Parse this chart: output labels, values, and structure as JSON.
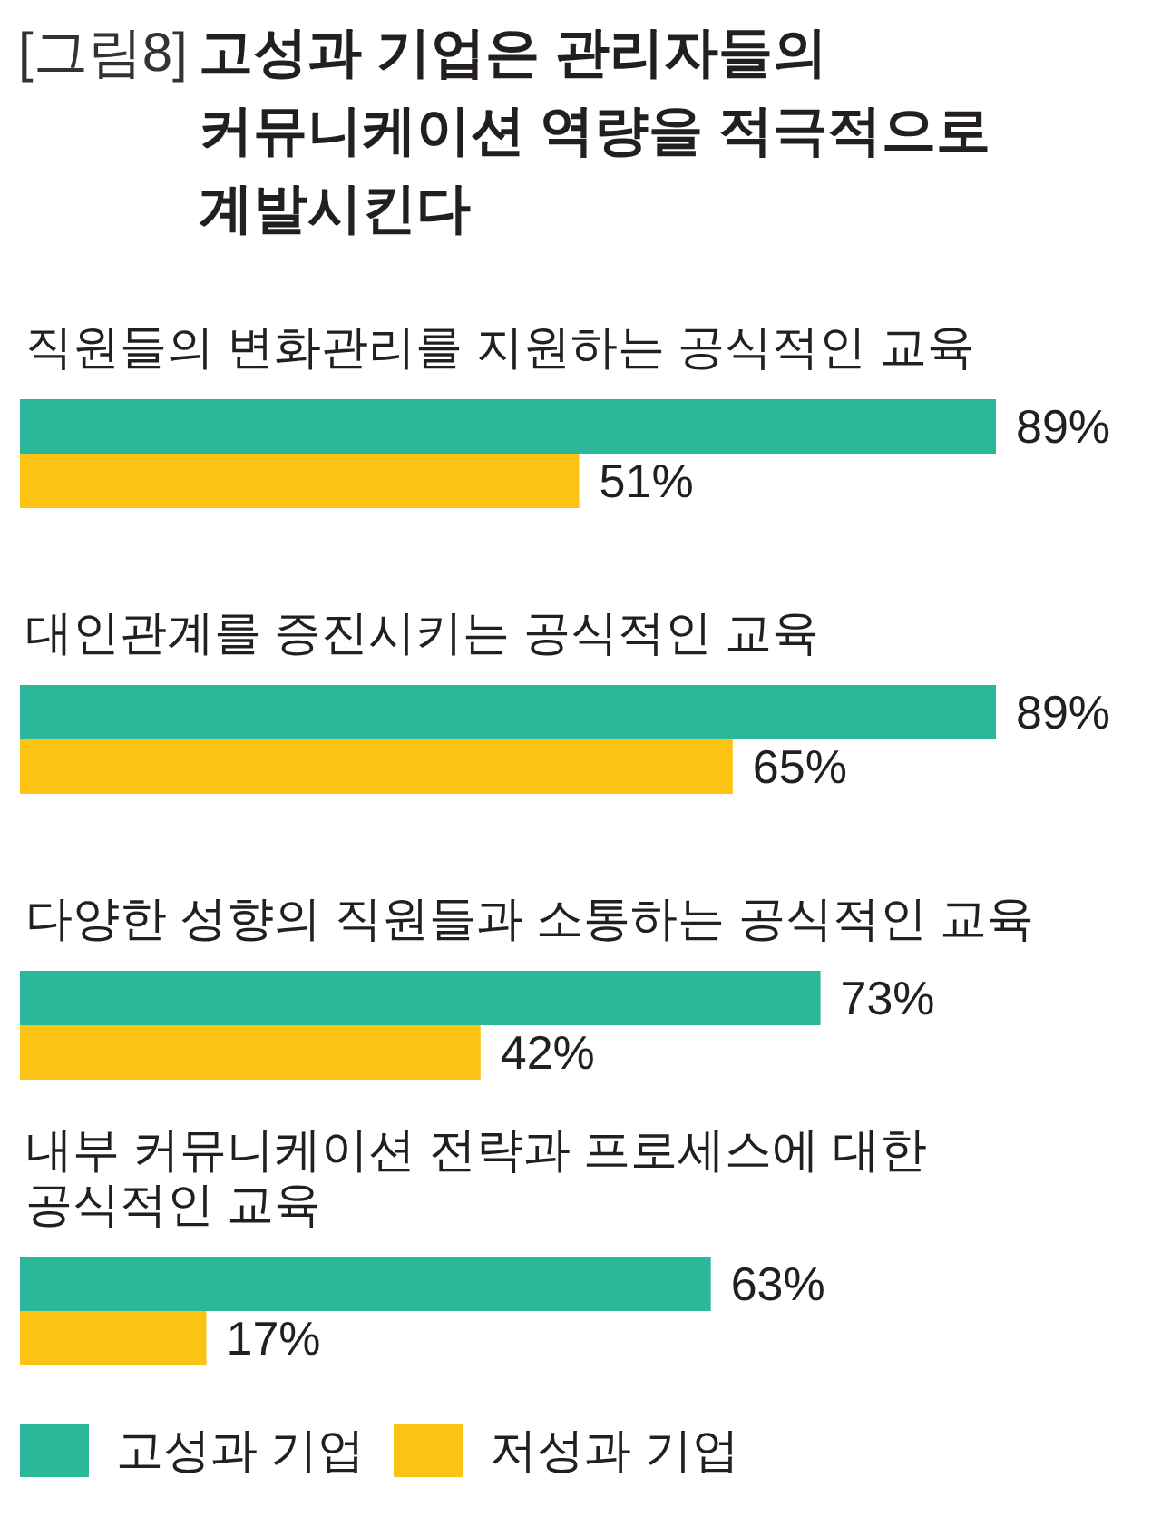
{
  "chart_data": {
    "type": "bar",
    "orientation": "horizontal",
    "title": "고성과 기업은 관리자들의 커뮤니케이션 역량을 적극적으로 계발시킨다",
    "annotations": [
      "[그림8]"
    ],
    "categories": [
      "직원들의 변화관리를 지원하는 공식적인 교육",
      "대인관계를 증진시키는 공식적인 교육",
      "다양한 성향의 직원들과 소통하는 공식적인 교육",
      "내부 커뮤니케이션 전략과 프로세스에 대한 공식적인 교육"
    ],
    "series": [
      {
        "name": "고성과 기업",
        "color": "#2bb89a",
        "values": [
          89,
          89,
          73,
          63
        ],
        "value_labels": [
          "89%",
          "89%",
          "73%",
          "63%"
        ]
      },
      {
        "name": "저성과 기업",
        "color": "#fcc314",
        "values": [
          51,
          65,
          42,
          17
        ],
        "value_labels": [
          "51%",
          "65%",
          "42%",
          "17%"
        ]
      }
    ],
    "legend": "bottom left"
  }
}
